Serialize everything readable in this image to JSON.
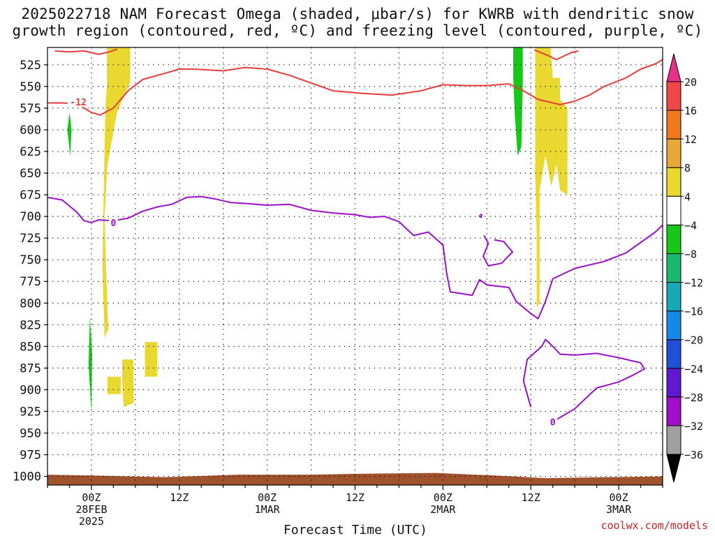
{
  "title_line1": "2025022718 NAM Forecast Omega (shaded, μbar/s) for KWRB with dendritic snow",
  "title_line2": "growth region (contoured, red, ºC) and freezing level (contoured, purple, ºC)",
  "credit": "coolwx.com/models",
  "chart_data": {
    "type": "heatmap",
    "title": "2025022718 NAM Forecast Omega (shaded, μbar/s) for KWRB with dendritic snow growth region (contoured, red, ºC) and freezing level (contoured, purple, ºC)",
    "xlabel": "Forecast Time (UTC)",
    "ylabel": "",
    "x_range_hours": [
      -6,
      78
    ],
    "y_range_hpa": [
      505,
      1010
    ],
    "y_ticks": [
      525,
      550,
      575,
      600,
      625,
      650,
      675,
      700,
      725,
      750,
      775,
      800,
      825,
      850,
      875,
      900,
      925,
      950,
      975,
      1000
    ],
    "x_ticks": [
      {
        "hour": 0,
        "label": "00Z",
        "date": "28FEB",
        "year": "2025"
      },
      {
        "hour": 12,
        "label": "12Z",
        "date": "",
        "year": ""
      },
      {
        "hour": 24,
        "label": "00Z",
        "date": "1MAR",
        "year": ""
      },
      {
        "hour": 36,
        "label": "12Z",
        "date": "",
        "year": ""
      },
      {
        "hour": 48,
        "label": "00Z",
        "date": "2MAR",
        "year": ""
      },
      {
        "hour": 60,
        "label": "12Z",
        "date": "",
        "year": ""
      },
      {
        "hour": 72,
        "label": "00Z",
        "date": "3MAR",
        "year": ""
      }
    ],
    "grid": true,
    "colorbar": {
      "labels": [
        "20",
        "16",
        "12",
        "8",
        "4",
        "−4",
        "−8",
        "−12",
        "−16",
        "−20",
        "−24",
        "−28",
        "−32",
        "−36"
      ],
      "colors": [
        "#e8308a",
        "#f04848",
        "#f07820",
        "#e8a838",
        "#e8d830",
        "#ffffff",
        "#18c818",
        "#18b870",
        "#18a8b8",
        "#1888e8",
        "#2050d8",
        "#6018d0",
        "#a010c8",
        "#a0a0a0",
        "#000000"
      ]
    },
    "omega_regions": [
      {
        "color": "#e8d830",
        "value_range": [
          4,
          8
        ],
        "points": [
          [
            2.5,
            505
          ],
          [
            5.3,
            505
          ],
          [
            5.3,
            545
          ],
          [
            3.5,
            580
          ],
          [
            2.2,
            640
          ],
          [
            1.8,
            700
          ],
          [
            2.0,
            760
          ],
          [
            2.3,
            830
          ],
          [
            1.8,
            840
          ],
          [
            1.5,
            760
          ],
          [
            1.7,
            660
          ],
          [
            1.9,
            575
          ]
        ]
      },
      {
        "color": "#e8d830",
        "value_range": [
          4,
          8
        ],
        "points": [
          [
            2.1,
            505
          ],
          [
            3.0,
            505
          ],
          [
            3.0,
            540
          ],
          [
            2.4,
            570
          ],
          [
            2.1,
            550
          ]
        ]
      },
      {
        "color": "#e8d830",
        "value_range": [
          4,
          8
        ],
        "points": [
          [
            2.2,
            885
          ],
          [
            4.0,
            885
          ],
          [
            4.0,
            905
          ],
          [
            2.2,
            905
          ]
        ]
      },
      {
        "color": "#e8d830",
        "value_range": [
          4,
          8
        ],
        "points": [
          [
            4.2,
            865
          ],
          [
            5.7,
            865
          ],
          [
            5.8,
            915
          ],
          [
            4.4,
            920
          ],
          [
            4.2,
            890
          ]
        ]
      },
      {
        "color": "#e8d830",
        "value_range": [
          4,
          8
        ],
        "points": [
          [
            7.3,
            845
          ],
          [
            9.0,
            845
          ],
          [
            9.0,
            885
          ],
          [
            7.3,
            885
          ]
        ]
      },
      {
        "color": "#e8d830",
        "value_range": [
          4,
          8
        ],
        "points": [
          [
            60.6,
            505
          ],
          [
            62.7,
            505
          ],
          [
            63.0,
            540
          ],
          [
            64.0,
            540
          ],
          [
            64.0,
            565
          ],
          [
            65.0,
            575
          ],
          [
            65.0,
            675
          ],
          [
            64.0,
            670
          ],
          [
            63.5,
            640
          ],
          [
            62.8,
            665
          ],
          [
            62.0,
            630
          ],
          [
            61.2,
            670
          ],
          [
            61.2,
            800
          ],
          [
            60.8,
            805
          ],
          [
            60.8,
            720
          ],
          [
            60.6,
            650
          ]
        ]
      },
      {
        "color": "#18c818",
        "value_range": [
          -8,
          -4
        ],
        "points": [
          [
            -3.0,
            580
          ],
          [
            -2.7,
            600
          ],
          [
            -2.9,
            630
          ],
          [
            -3.3,
            600
          ]
        ]
      },
      {
        "color": "#18c818",
        "value_range": [
          -8,
          -4
        ],
        "points": [
          [
            -0.2,
            815
          ],
          [
            0.1,
            860
          ],
          [
            0.0,
            925
          ],
          [
            -0.4,
            870
          ]
        ]
      },
      {
        "color": "#18c818",
        "value_range": [
          -8,
          -4
        ],
        "points": [
          [
            57.6,
            505
          ],
          [
            58.9,
            505
          ],
          [
            58.9,
            550
          ],
          [
            58.7,
            620
          ],
          [
            58.2,
            630
          ],
          [
            57.8,
            580
          ],
          [
            57.6,
            540
          ]
        ]
      }
    ],
    "terrain": {
      "color": "#a0522d",
      "top_hpa": 1000,
      "points": [
        [
          -6,
          998
        ],
        [
          0,
          999
        ],
        [
          10,
          1001
        ],
        [
          20,
          998
        ],
        [
          30,
          998
        ],
        [
          36,
          997
        ],
        [
          47,
          996
        ],
        [
          55,
          999
        ],
        [
          62,
          1002
        ],
        [
          70,
          1001
        ],
        [
          78,
          1000
        ]
      ]
    },
    "red_contours": [
      {
        "label": "-12",
        "label_at": [
          -1.8,
          568
        ],
        "points": [
          [
            -6,
            569
          ],
          [
            -4,
            569
          ],
          [
            -2,
            570
          ],
          [
            0,
            580
          ],
          [
            1.2,
            583
          ],
          [
            3,
            575
          ],
          [
            5,
            555
          ],
          [
            7,
            542
          ],
          [
            10,
            535
          ],
          [
            12,
            530
          ],
          [
            14,
            530
          ],
          [
            18,
            532
          ],
          [
            21,
            528
          ],
          [
            24,
            530
          ],
          [
            27,
            537
          ],
          [
            30,
            546
          ],
          [
            33,
            555
          ],
          [
            37,
            558
          ],
          [
            41,
            560
          ],
          [
            45,
            555
          ],
          [
            48,
            548
          ],
          [
            51,
            549
          ],
          [
            54,
            549
          ],
          [
            57,
            547
          ],
          [
            59,
            555
          ],
          [
            61,
            565
          ],
          [
            64,
            571
          ],
          [
            66,
            567
          ],
          [
            68,
            560
          ],
          [
            70,
            550
          ],
          [
            73,
            540
          ],
          [
            75,
            530
          ],
          [
            77,
            524
          ],
          [
            78,
            519
          ]
        ]
      },
      {
        "label": "",
        "label_at": null,
        "points": [
          [
            -5,
            509
          ],
          [
            -3,
            510
          ],
          [
            -1,
            509
          ],
          [
            1,
            513
          ],
          [
            2.5,
            510
          ],
          [
            3.5,
            507
          ]
        ]
      },
      {
        "label": "",
        "label_at": null,
        "points": [
          [
            60.5,
            508
          ],
          [
            62,
            513
          ],
          [
            63.5,
            519
          ],
          [
            65.5,
            511
          ],
          [
            66.5,
            509
          ]
        ]
      }
    ],
    "purple_contours": [
      {
        "label": "0",
        "label_at": [
          3,
          707
        ],
        "points": [
          [
            -6,
            678
          ],
          [
            -4,
            681
          ],
          [
            -2,
            695
          ],
          [
            -1,
            705
          ],
          [
            0,
            707
          ],
          [
            1,
            704
          ],
          [
            3,
            705
          ],
          [
            5,
            702
          ],
          [
            7,
            694
          ],
          [
            9,
            689
          ],
          [
            11,
            686
          ],
          [
            13,
            678
          ],
          [
            15,
            677
          ],
          [
            17,
            680
          ],
          [
            19,
            684
          ],
          [
            21,
            685
          ],
          [
            24,
            687
          ],
          [
            27,
            686
          ],
          [
            30,
            693
          ],
          [
            33,
            696
          ],
          [
            36,
            698
          ],
          [
            38,
            701
          ],
          [
            40,
            700
          ],
          [
            42,
            706
          ],
          [
            44,
            722
          ],
          [
            46,
            718
          ],
          [
            48,
            733
          ],
          [
            48.5,
            765
          ],
          [
            49,
            787
          ],
          [
            52,
            791
          ],
          [
            53,
            773
          ],
          [
            54,
            779
          ],
          [
            57,
            782
          ],
          [
            58,
            798
          ],
          [
            60,
            812
          ],
          [
            61,
            818
          ],
          [
            62,
            798
          ],
          [
            63,
            772
          ],
          [
            66,
            760
          ],
          [
            70,
            752
          ],
          [
            73,
            742
          ],
          [
            77,
            718
          ],
          [
            78,
            710
          ]
        ]
      },
      {
        "label": "",
        "label_at": null,
        "points": [
          [
            53.6,
            722
          ],
          [
            54.2,
            731
          ],
          [
            53.5,
            746
          ],
          [
            54.2,
            757
          ],
          [
            56,
            754
          ],
          [
            57.5,
            741
          ],
          [
            56.3,
            729
          ],
          [
            55,
            727
          ]
        ]
      },
      {
        "label": "0",
        "label_at": [
          63,
          937
        ],
        "points": [
          [
            63,
            937
          ],
          [
            66,
            922
          ],
          [
            69,
            898
          ],
          [
            72,
            891
          ],
          [
            74,
            883
          ],
          [
            75.5,
            876
          ],
          [
            75,
            869
          ],
          [
            72,
            863
          ],
          [
            69,
            858
          ],
          [
            66,
            860
          ],
          [
            64,
            859
          ],
          [
            63,
            850
          ],
          [
            62,
            842
          ],
          [
            61.5,
            850
          ],
          [
            59.5,
            865
          ],
          [
            59,
            890
          ],
          [
            60,
            920
          ]
        ]
      },
      {
        "label": "",
        "label_at": null,
        "points": [
          [
            53.1,
            697
          ],
          [
            53.3,
            699
          ],
          [
            53.2,
            701
          ],
          [
            52.9,
            699
          ]
        ]
      }
    ]
  }
}
